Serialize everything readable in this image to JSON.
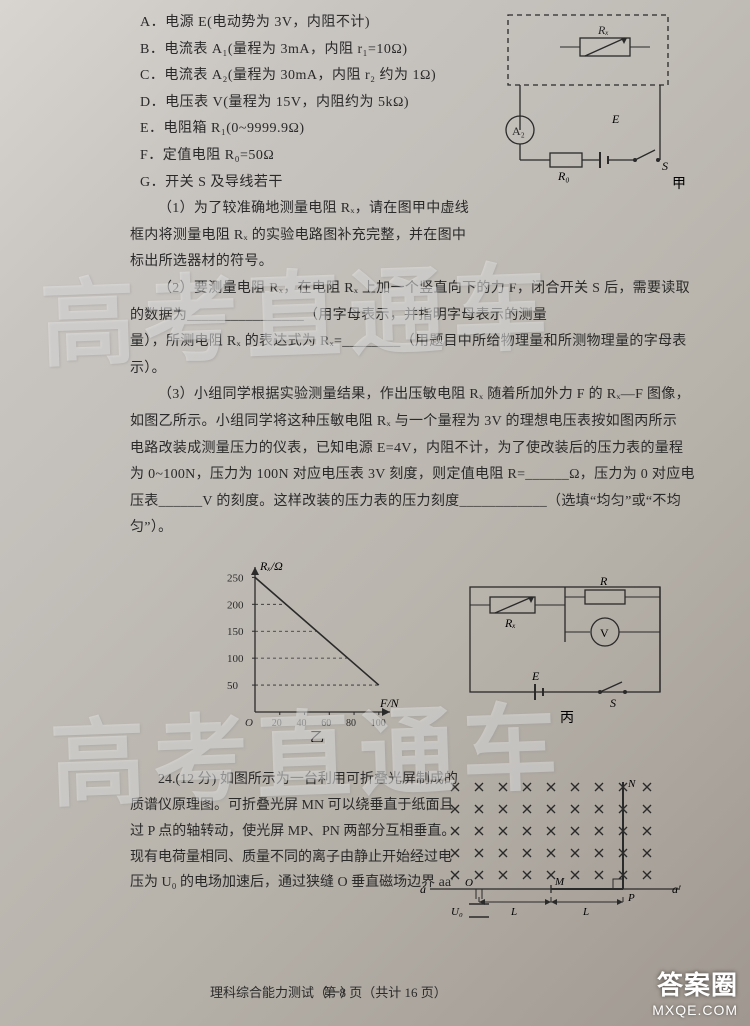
{
  "options": {
    "A": "A．电源 E(电动势为 3V，内阻不计)",
    "B": "B．电流表 A₁(量程为 3mA，内阻 r₁=10Ω)",
    "C": "C．电流表 A₂(量程为 30mA，内阻 r₂ 约为 1Ω)",
    "D": "D．电压表 V(量程为 15V，内阻约为 5kΩ)",
    "E": "E．电阻箱 R₁(0~9999.9Ω)",
    "F": "F．定值电阻 R₀=50Ω",
    "G": "G．开关 S 及导线若干"
  },
  "paragraphs": {
    "p1_a": "（1）为了较准确地测量电阻 Rₓ，请在图甲中虚线",
    "p1_b": "框内将测量电阻 Rₓ 的实验电路图补充完整，并在图中",
    "p1_c": "标出所选器材的符号。",
    "p2_a": "（2）要测量电阻 Rₓ，在电阻 Rₓ 上加一个竖直向下的力 F，闭合开关 S 后，需要读取",
    "p2_b": "的数据为________________（用字母表示，并指明字母表示的测量",
    "p2_c": "量），所测电阻 Rₓ 的表达式为 Rₓ=________（用题目中所给物理量和所测物理量的字母表示）。",
    "p3_a": "（3）小组同学根据实验测量结果，作出压敏电阻 Rₓ 随着所加外力 F 的 Rₓ—F 图像，",
    "p3_b": "如图乙所示。小组同学将这种压敏电阻 Rₓ 与一个量程为 3V 的理想电压表按如图丙所示",
    "p3_c": "电路改装成测量压力的仪表，已知电源 E=4V，内阻不计，为了使改装后的压力表的量程",
    "p3_d": "为 0~100N，压力为 100N 对应电压表 3V 刻度，则定值电阻 R=______Ω，压力为 0 对应电",
    "p3_e": "压表______V 的刻度。这样改装的压力表的压力刻度____________（选填“均匀”或“不均",
    "p3_f": "匀”）。"
  },
  "circuit_top": {
    "labels": {
      "Rx": "Rₓ",
      "A2": "A₂",
      "R0": "R₀",
      "E": "E",
      "S": "S",
      "caption": "甲"
    },
    "colors": {
      "stroke": "#2a2a2a",
      "text": "#2a2a2a"
    }
  },
  "graph": {
    "axes": {
      "y_label": "Rₓ/Ω",
      "x_label": "F/N"
    },
    "y_ticks": [
      50,
      100,
      150,
      200,
      250
    ],
    "x_ticks": [
      20,
      40,
      60,
      80,
      100
    ],
    "y_range": [
      0,
      260
    ],
    "x_range": [
      0,
      105
    ],
    "line_start": [
      0,
      250
    ],
    "line_end": [
      100,
      50
    ],
    "caption": "乙",
    "colors": {
      "axis": "#2a2a2a",
      "line": "#2a2a2a"
    }
  },
  "circuit_bing": {
    "labels": {
      "Rx": "Rₓ",
      "R": "R",
      "V": "V",
      "E": "E",
      "S": "S",
      "caption": "丙"
    },
    "colors": {
      "stroke": "#2a2a2a"
    }
  },
  "q24": {
    "num": "24.(12 分) 如图所示为一台利用可折叠光屏制成的",
    "l2": "质谱仪原理图。可折叠光屏 MN 可以绕垂直于纸面且",
    "l3": "过 P 点的轴转动，使光屏 MP、PN 两部分互相垂直。",
    "l4": "现有电荷量相同、质量不同的离子由静止开始经过电",
    "l5": "压为 U₀ 的电场加速后，通过狭缝 O 垂直磁场边界 aa′"
  },
  "dots_diagram": {
    "rows": 5,
    "cols": 9,
    "labels": {
      "a": "a",
      "a2": "a′",
      "O": "O",
      "M": "M",
      "N": "N",
      "P": "P",
      "U0": "U₀",
      "L": "L"
    },
    "color": "#2a2a2a"
  },
  "footer": {
    "left": "理科综合能力测试（一）",
    "center": "第 8 页（共计 16 页）"
  },
  "watermark": "高考直通车",
  "badge": {
    "title": "答案圈",
    "url": "MXQE.COM"
  }
}
